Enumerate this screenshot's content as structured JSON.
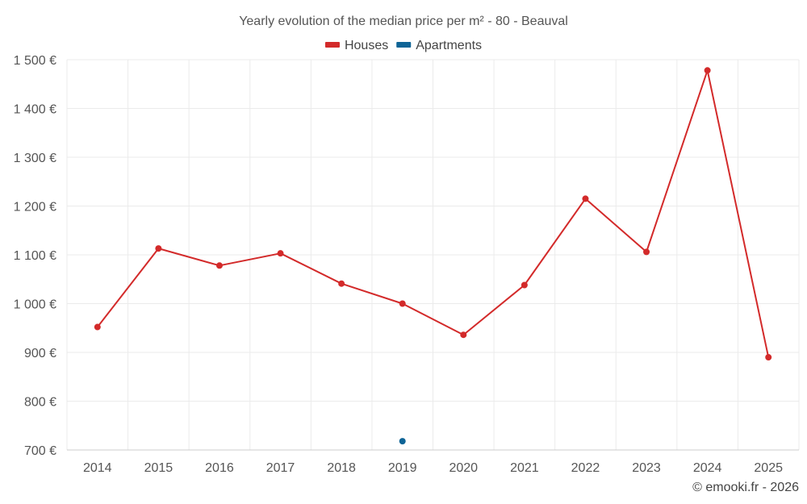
{
  "chart_data": {
    "type": "line",
    "title": "Yearly evolution of the median price per m² - 80 - Beauval",
    "categories": [
      "2014",
      "2015",
      "2016",
      "2017",
      "2018",
      "2019",
      "2020",
      "2021",
      "2022",
      "2023",
      "2024",
      "2025"
    ],
    "series": [
      {
        "name": "Houses",
        "color": "#d32a2a",
        "values": [
          952,
          1113,
          1078,
          1103,
          1041,
          1000,
          936,
          1038,
          1215,
          1106,
          1478,
          890
        ]
      },
      {
        "name": "Apartments",
        "color": "#0e6496",
        "values": [
          null,
          null,
          null,
          null,
          null,
          718,
          null,
          null,
          null,
          null,
          null,
          null
        ]
      }
    ],
    "ylim": [
      700,
      1500
    ],
    "yticks": [
      700,
      800,
      900,
      1000,
      1100,
      1200,
      1300,
      1400,
      1500
    ],
    "ytick_labels": [
      "700 €",
      "800 €",
      "900 €",
      "1 000 €",
      "1 100 €",
      "1 200 €",
      "1 300 €",
      "1 400 €",
      "1 500 €"
    ],
    "xlabel": "",
    "ylabel": "",
    "legend": "top-center",
    "grid": true
  },
  "credit": "© emooki.fr - 2026"
}
